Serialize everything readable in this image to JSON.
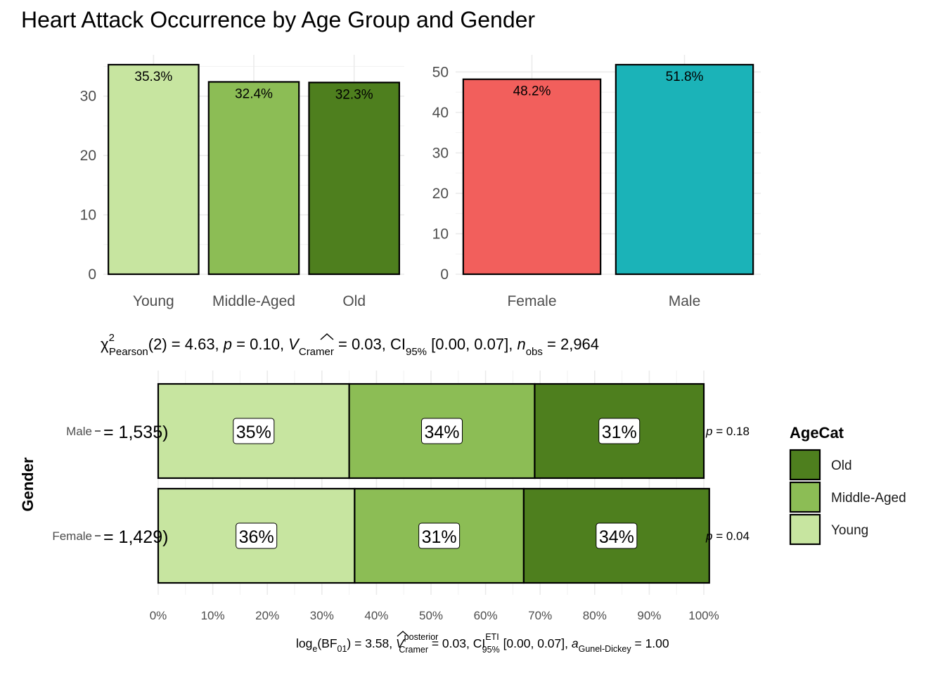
{
  "figure": {
    "title": "Heart Attack Occurrence by Age Group and Gender"
  },
  "colors": {
    "Young": "#C7E5A0",
    "Middle-Aged": "#8CBD55",
    "Old": "#4E7F1E",
    "Female": "#F25F5C",
    "Male": "#1BB3B8"
  },
  "chart_data": [
    {
      "type": "bar",
      "title": "",
      "xlabel": "",
      "ylabel": "",
      "categories": [
        "Young",
        "Middle-Aged",
        "Old"
      ],
      "values": [
        35.3,
        32.4,
        32.3
      ],
      "data_labels": [
        "35.3%",
        "32.4%",
        "32.3%"
      ],
      "ylim": [
        0,
        35.3
      ],
      "yticks": [
        0,
        10,
        20,
        30
      ],
      "grid": true,
      "fill_colors": [
        "#C7E5A0",
        "#8CBD55",
        "#4E7F1E"
      ]
    },
    {
      "type": "bar",
      "title": "",
      "xlabel": "",
      "ylabel": "",
      "categories": [
        "Female",
        "Male"
      ],
      "values": [
        48.2,
        51.8
      ],
      "data_labels": [
        "48.2%",
        "51.8%"
      ],
      "ylim": [
        0,
        51.8
      ],
      "yticks": [
        0,
        10,
        20,
        30,
        40,
        50
      ],
      "grid": true,
      "fill_colors": [
        "#F25F5C",
        "#1BB3B8"
      ]
    },
    {
      "type": "bar",
      "orientation": "horizontal-stacked-percent",
      "subtitle_parts": {
        "chi": "χ",
        "chi_sup": "2",
        "chi_sub": "Pearson",
        "df_stat": "(2) = 4.63, ",
        "p": "p",
        "p_rest": " = 0.10, ",
        "v": "V",
        "v_sub": "Cramer",
        "v_rest": " = 0.03, CI",
        "ci_sub": "95%",
        "ci_rest": " [0.00, 0.07], ",
        "n": "n",
        "n_sub": "obs",
        "n_rest": " = 2,964"
      },
      "caption_parts": {
        "log": "log",
        "log_sub": "e",
        "bf_open": "(BF",
        "bf_sub": "01",
        "bf_rest": ") = 3.58, ",
        "v": "V",
        "v_sup": "posterior",
        "v_sub": "Cramer",
        "v_rest": " = 0.03, CI",
        "ci_sup": "ETI",
        "ci_sub": "95%",
        "ci_rest": " [0.00, 0.07], ",
        "a": "a",
        "a_sub": "Gunel-Dickey",
        "a_rest": " = 1.00"
      },
      "ylabel": "Gender",
      "xlabel": "",
      "xlim": [
        0,
        100
      ],
      "xtick_labels": [
        "0%",
        "10%",
        "20%",
        "30%",
        "40%",
        "50%",
        "60%",
        "70%",
        "80%",
        "90%",
        "100%"
      ],
      "categories": [
        "Male",
        "Female"
      ],
      "n_labels": [
        "= 1,535)",
        "= 1,429)"
      ],
      "p_labels": [
        {
          "p": "p",
          "rest": " = 0.18"
        },
        {
          "p": "p",
          "rest": " = 0.04"
        }
      ],
      "series": [
        {
          "name": "Young",
          "values": [
            35,
            36
          ]
        },
        {
          "name": "Middle-Aged",
          "values": [
            34,
            31
          ]
        },
        {
          "name": "Old",
          "values": [
            31,
            34
          ]
        }
      ],
      "data_labels": [
        [
          "35%",
          "34%",
          "31%"
        ],
        [
          "36%",
          "31%",
          "34%"
        ]
      ],
      "legend": {
        "title": "AgeCat",
        "placement": "right",
        "items": [
          "Old",
          "Middle-Aged",
          "Young"
        ]
      },
      "grid": true
    }
  ]
}
